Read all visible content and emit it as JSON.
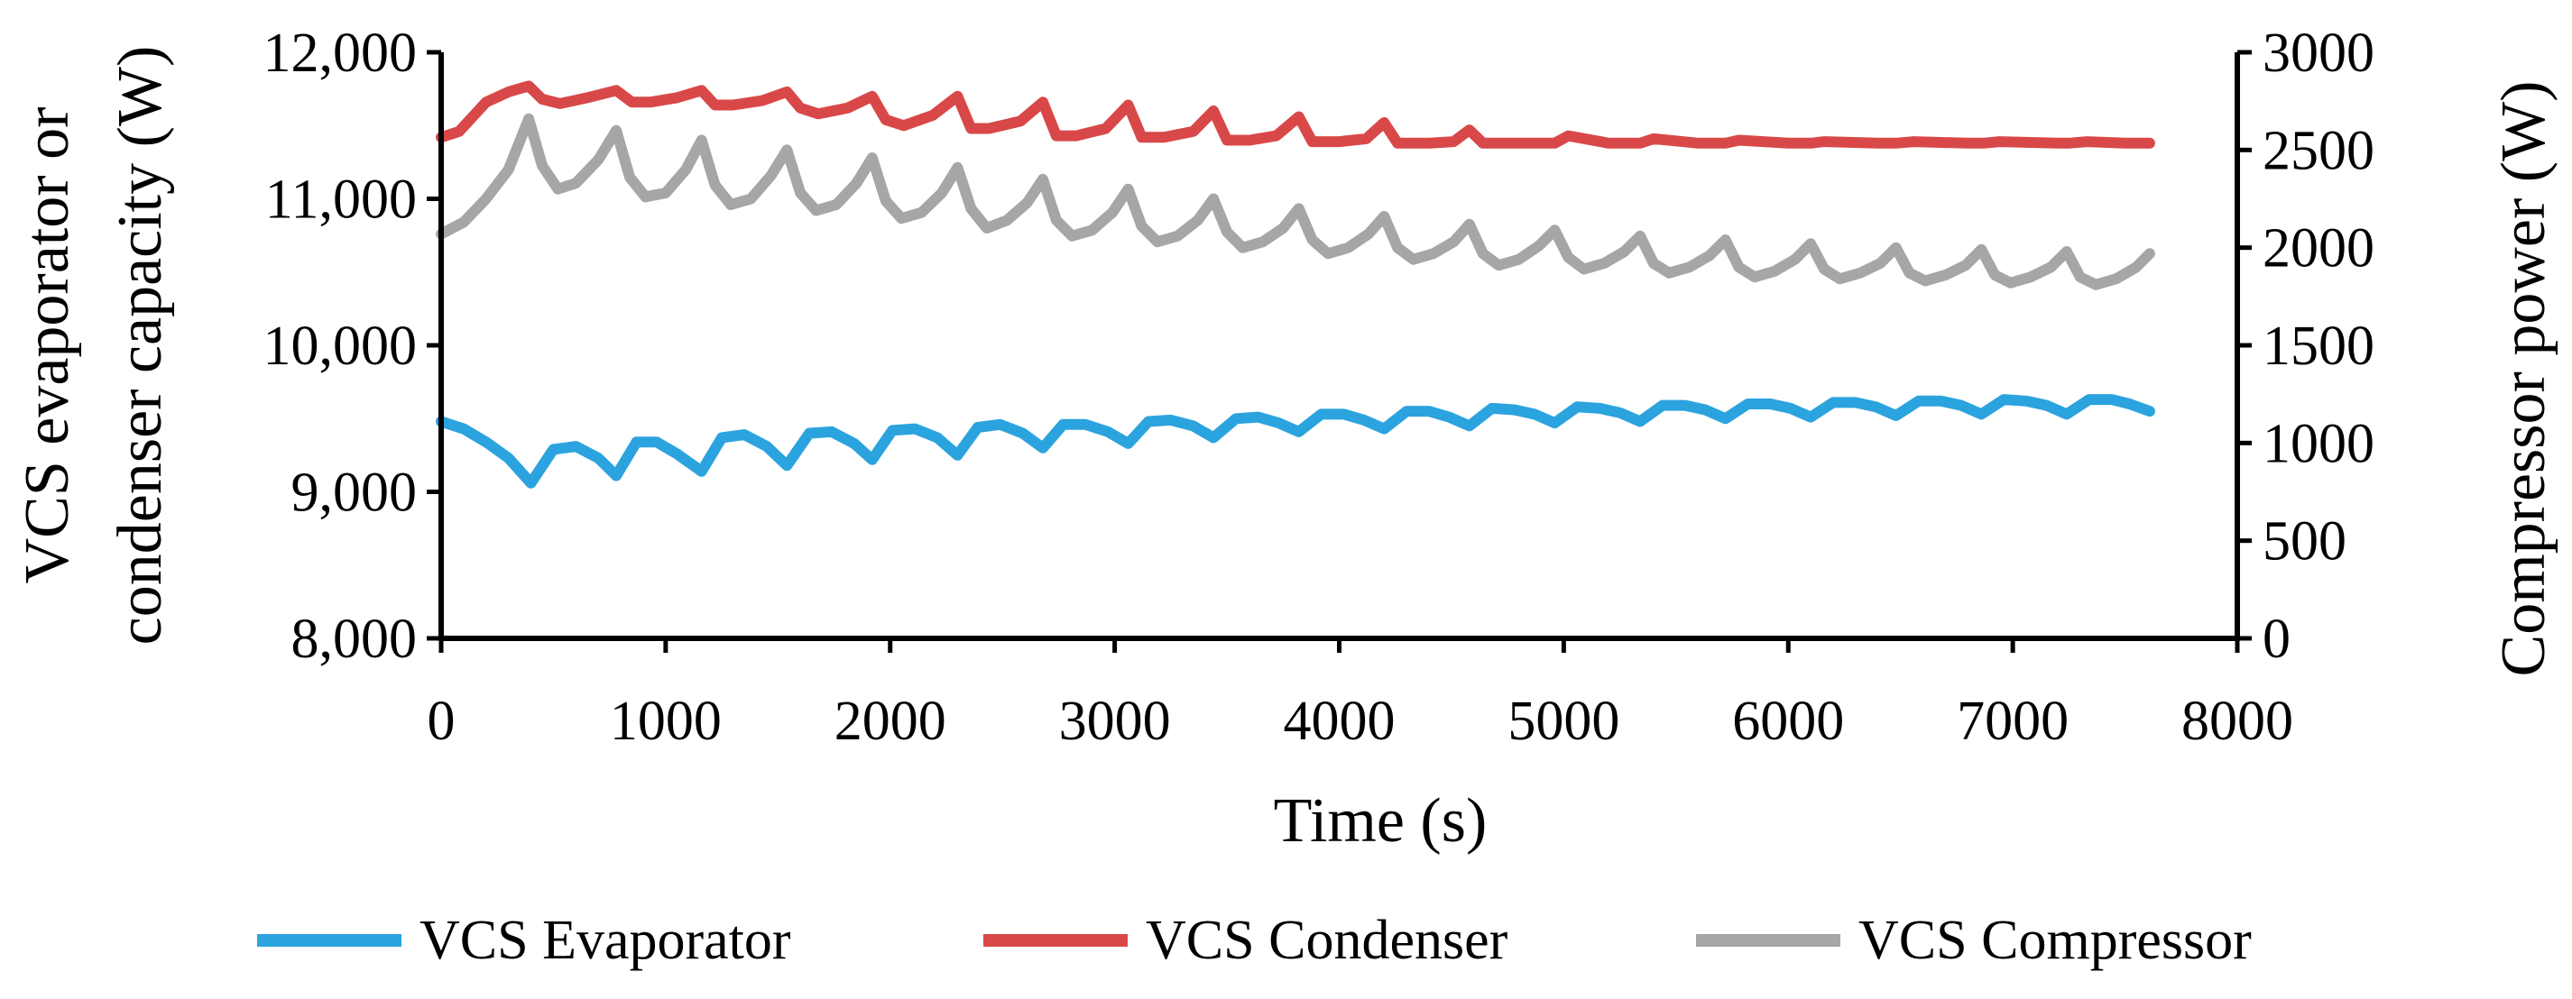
{
  "chart_data": {
    "type": "line",
    "title": "",
    "xlabel": "Time (s)",
    "ylabel_left": [
      "VCS evaporator or",
      "condenser capacity (W)"
    ],
    "ylabel_right": "Compressor power (W)",
    "xlim": [
      0,
      8000
    ],
    "ylim_left": [
      8000,
      12000
    ],
    "ylim_right": [
      0,
      3000
    ],
    "x_ticks": [
      0,
      1000,
      2000,
      3000,
      4000,
      5000,
      6000,
      7000,
      8000
    ],
    "x_tick_labels": [
      "0",
      "1000",
      "2000",
      "3000",
      "4000",
      "5000",
      "6000",
      "7000",
      "8000"
    ],
    "y_left_ticks": [
      8000,
      9000,
      10000,
      11000,
      12000
    ],
    "y_left_tick_labels": [
      "8,000",
      "9,000",
      "10,000",
      "11,000",
      "12,000"
    ],
    "y_right_ticks": [
      0,
      500,
      1000,
      1500,
      2000,
      2500,
      3000
    ],
    "y_right_tick_labels": [
      "0",
      "500",
      "1000",
      "1500",
      "2000",
      "2500",
      "3000"
    ],
    "grid": false,
    "legend_position": "bottom",
    "series": [
      {
        "name": "VCS Evaporator",
        "axis": "left",
        "color": "#2BA3DE",
        "x": [
          0,
          100,
          200,
          300,
          400,
          500,
          600,
          700,
          780,
          870,
          960,
          1050,
          1160,
          1250,
          1350,
          1450,
          1540,
          1640,
          1740,
          1840,
          1920,
          2010,
          2110,
          2210,
          2300,
          2390,
          2490,
          2590,
          2680,
          2770,
          2870,
          2970,
          3060,
          3150,
          3250,
          3350,
          3440,
          3540,
          3640,
          3730,
          3820,
          3920,
          4020,
          4110,
          4200,
          4300,
          4400,
          4490,
          4580,
          4680,
          4780,
          4870,
          4960,
          5060,
          5160,
          5250,
          5340,
          5440,
          5540,
          5630,
          5720,
          5820,
          5920,
          6010,
          6100,
          6200,
          6300,
          6390,
          6480,
          6580,
          6680,
          6770,
          6860,
          6960,
          7060,
          7150,
          7240,
          7340,
          7440,
          7520,
          7610
        ],
        "values": [
          9480,
          9430,
          9340,
          9230,
          9060,
          9290,
          9310,
          9230,
          9110,
          9340,
          9340,
          9260,
          9140,
          9370,
          9390,
          9310,
          9180,
          9400,
          9410,
          9330,
          9220,
          9420,
          9430,
          9370,
          9250,
          9440,
          9460,
          9400,
          9300,
          9460,
          9460,
          9410,
          9330,
          9480,
          9490,
          9450,
          9370,
          9500,
          9510,
          9470,
          9410,
          9530,
          9530,
          9490,
          9430,
          9550,
          9550,
          9510,
          9450,
          9570,
          9560,
          9530,
          9470,
          9580,
          9570,
          9540,
          9480,
          9590,
          9590,
          9560,
          9500,
          9600,
          9600,
          9570,
          9510,
          9610,
          9610,
          9580,
          9520,
          9620,
          9620,
          9590,
          9530,
          9630,
          9620,
          9590,
          9530,
          9630,
          9630,
          9600,
          9550
        ]
      },
      {
        "name": "VCS Condenser",
        "axis": "left",
        "color": "#D94848",
        "x": [
          0,
          80,
          200,
          300,
          390,
          450,
          530,
          650,
          780,
          850,
          930,
          1050,
          1160,
          1220,
          1300,
          1430,
          1540,
          1600,
          1680,
          1810,
          1920,
          1980,
          2060,
          2190,
          2300,
          2360,
          2440,
          2580,
          2680,
          2740,
          2830,
          2960,
          3060,
          3120,
          3220,
          3350,
          3440,
          3500,
          3600,
          3720,
          3820,
          3880,
          4000,
          4120,
          4200,
          4260,
          4400,
          4510,
          4580,
          4640,
          4800,
          4960,
          5020,
          5200,
          5340,
          5400,
          5600,
          5720,
          5780,
          6000,
          6100,
          6160,
          6400,
          6480,
          6560,
          6800,
          6870,
          6940,
          7200,
          7250,
          7330,
          7500,
          7610
        ],
        "values": [
          11420,
          11460,
          11660,
          11730,
          11770,
          11680,
          11650,
          11690,
          11740,
          11660,
          11660,
          11690,
          11740,
          11640,
          11640,
          11670,
          11730,
          11620,
          11580,
          11620,
          11700,
          11540,
          11500,
          11570,
          11700,
          11480,
          11480,
          11530,
          11660,
          11430,
          11430,
          11480,
          11640,
          11420,
          11420,
          11460,
          11600,
          11400,
          11400,
          11430,
          11560,
          11390,
          11390,
          11410,
          11520,
          11380,
          11380,
          11390,
          11470,
          11380,
          11380,
          11380,
          11430,
          11380,
          11380,
          11410,
          11380,
          11380,
          11400,
          11380,
          11380,
          11390,
          11380,
          11380,
          11390,
          11380,
          11380,
          11390,
          11380,
          11380,
          11390,
          11380,
          11380
        ]
      },
      {
        "name": "VCS Compressor",
        "axis": "right",
        "color": "#A6A6A6",
        "x": [
          0,
          100,
          200,
          300,
          390,
          450,
          520,
          600,
          700,
          780,
          840,
          910,
          1000,
          1090,
          1160,
          1220,
          1290,
          1380,
          1470,
          1540,
          1600,
          1670,
          1760,
          1850,
          1920,
          1980,
          2050,
          2140,
          2230,
          2300,
          2360,
          2430,
          2520,
          2610,
          2680,
          2740,
          2810,
          2900,
          2990,
          3060,
          3120,
          3190,
          3280,
          3370,
          3440,
          3500,
          3570,
          3660,
          3750,
          3820,
          3880,
          3950,
          4040,
          4130,
          4200,
          4260,
          4330,
          4420,
          4510,
          4580,
          4640,
          4710,
          4800,
          4890,
          4960,
          5020,
          5090,
          5180,
          5270,
          5340,
          5400,
          5470,
          5560,
          5650,
          5720,
          5780,
          5850,
          5940,
          6030,
          6100,
          6160,
          6230,
          6320,
          6410,
          6480,
          6540,
          6610,
          6700,
          6790,
          6860,
          6920,
          6990,
          7080,
          7170,
          7240,
          7300,
          7370,
          7460,
          7550,
          7610
        ],
        "values": [
          2070,
          2130,
          2250,
          2400,
          2660,
          2420,
          2300,
          2330,
          2450,
          2600,
          2360,
          2260,
          2280,
          2400,
          2550,
          2320,
          2220,
          2250,
          2370,
          2500,
          2280,
          2190,
          2220,
          2330,
          2460,
          2240,
          2150,
          2180,
          2280,
          2410,
          2200,
          2100,
          2140,
          2230,
          2350,
          2140,
          2060,
          2090,
          2180,
          2300,
          2110,
          2030,
          2060,
          2140,
          2250,
          2080,
          2000,
          2030,
          2100,
          2200,
          2040,
          1970,
          2000,
          2070,
          2160,
          2000,
          1940,
          1970,
          2030,
          2120,
          1970,
          1910,
          1940,
          2010,
          2090,
          1950,
          1890,
          1920,
          1980,
          2060,
          1920,
          1870,
          1900,
          1960,
          2040,
          1900,
          1850,
          1880,
          1940,
          2020,
          1890,
          1840,
          1870,
          1920,
          2000,
          1870,
          1830,
          1860,
          1910,
          1990,
          1860,
          1820,
          1850,
          1900,
          1980,
          1850,
          1810,
          1840,
          1900,
          1970
        ]
      }
    ]
  }
}
